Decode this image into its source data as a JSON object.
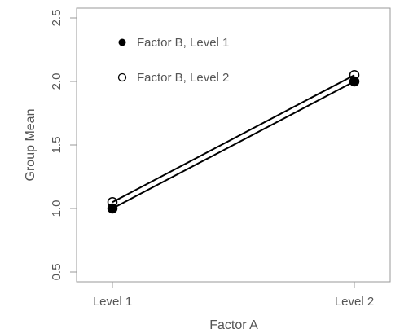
{
  "chart_data": {
    "type": "line",
    "title": "",
    "xlabel": "Factor A",
    "ylabel": "Group Mean",
    "categories": [
      "Level 1",
      "Level 2"
    ],
    "ylim": [
      0.5,
      2.5
    ],
    "yticks": [
      "0.5",
      "1.0",
      "1.5",
      "2.0",
      "2.5"
    ],
    "legend_position": "top-left",
    "grid": false,
    "series": [
      {
        "name": "Factor B, Level 1",
        "values": [
          1.0,
          2.0
        ],
        "marker": "filled-circle",
        "color": "#000000"
      },
      {
        "name": "Factor B, Level 2",
        "values": [
          1.05,
          2.05
        ],
        "marker": "open-circle",
        "color": "#000000"
      }
    ]
  }
}
